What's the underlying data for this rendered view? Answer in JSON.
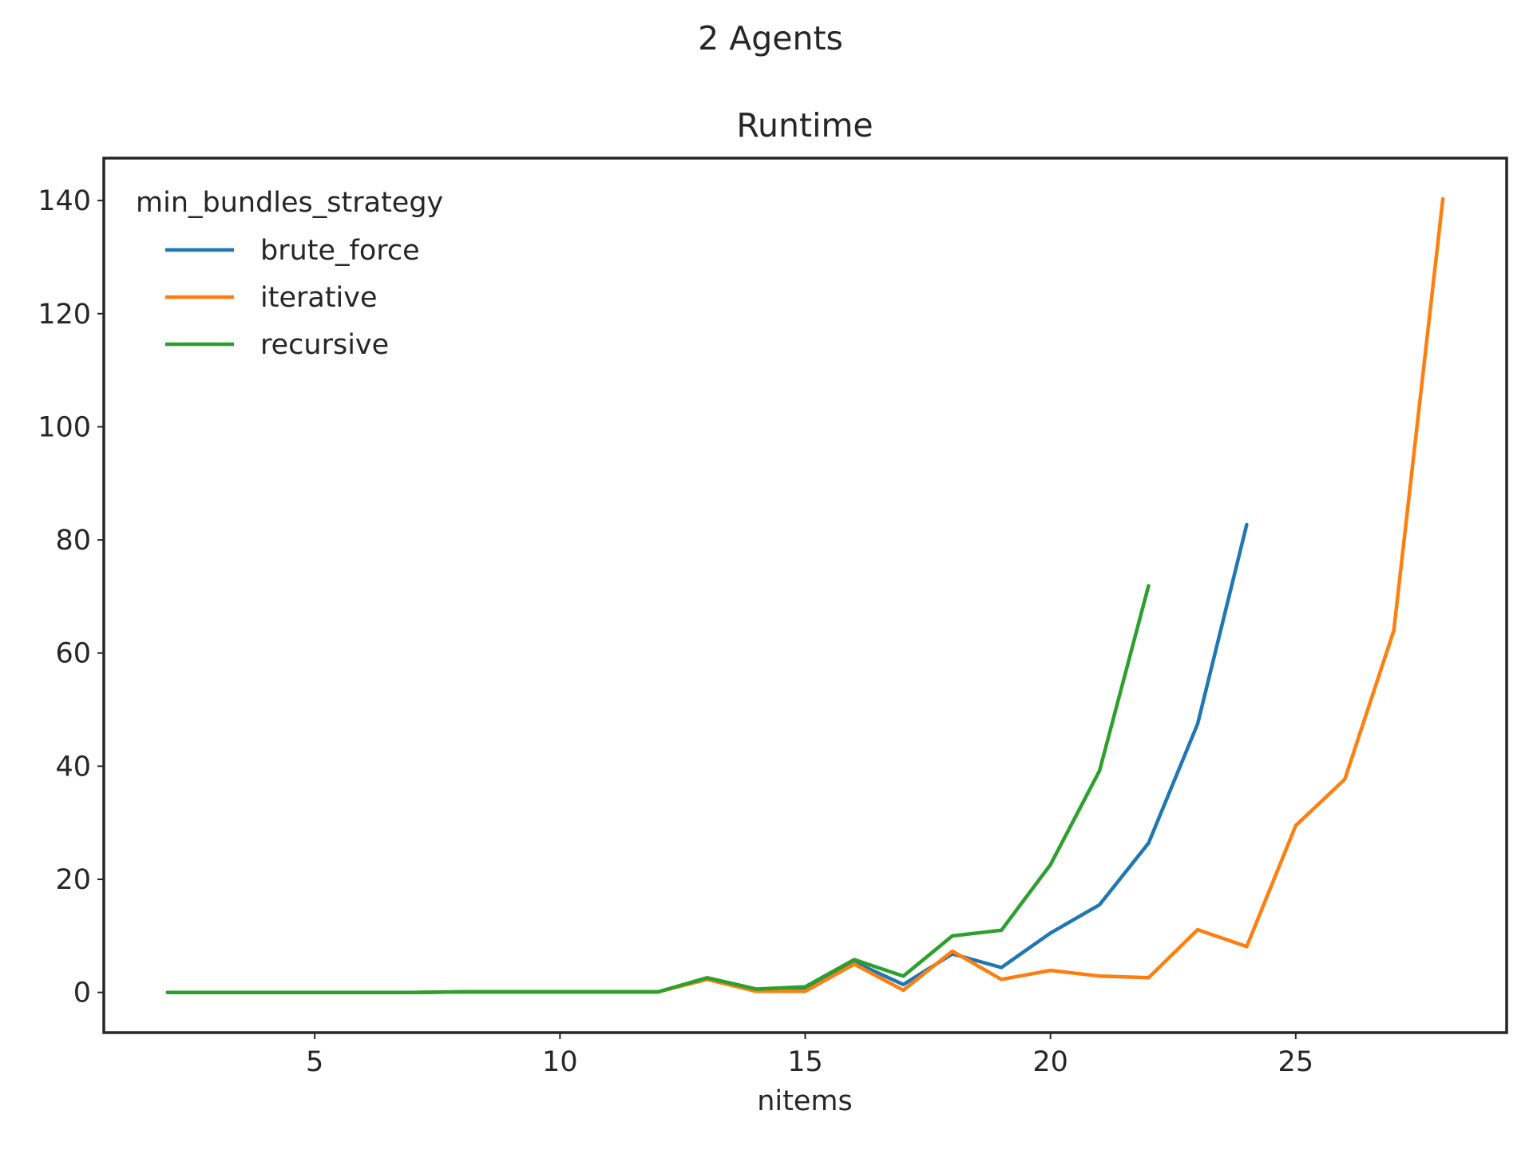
{
  "figure": {
    "suptitle": "2 Agents"
  },
  "chart_data": {
    "type": "line",
    "title": "Runtime",
    "xlabel": "nitems",
    "ylabel": "",
    "xlim": [
      0.7,
      29.3
    ],
    "ylim": [
      -7.1,
      147.5
    ],
    "xticks": [
      5,
      10,
      15,
      20,
      25
    ],
    "yticks": [
      0,
      20,
      40,
      60,
      80,
      100,
      120,
      140
    ],
    "grid": false,
    "legend": {
      "title": "min_bundles_strategy",
      "placement": "top-left"
    },
    "series": [
      {
        "name": "brute_force",
        "color": "#1f77b4",
        "x": [
          2,
          3,
          4,
          5,
          6,
          7,
          8,
          9,
          10,
          11,
          12,
          13,
          14,
          15,
          16,
          17,
          18,
          19,
          20,
          21,
          22,
          23,
          24
        ],
        "y": [
          0.0,
          0.0,
          0.0,
          0.0,
          0.0,
          0.0,
          0.1,
          0.1,
          0.1,
          0.1,
          0.1,
          2.4,
          0.5,
          0.7,
          5.4,
          1.4,
          6.8,
          4.4,
          10.5,
          15.5,
          26.4,
          47.5,
          82.7
        ]
      },
      {
        "name": "iterative",
        "color": "#ff7f0e",
        "x": [
          2,
          3,
          4,
          5,
          6,
          7,
          8,
          9,
          10,
          11,
          12,
          13,
          14,
          15,
          16,
          17,
          18,
          19,
          20,
          21,
          22,
          23,
          24,
          25,
          26,
          27,
          28
        ],
        "y": [
          0.0,
          0.0,
          0.0,
          0.0,
          0.0,
          0.0,
          0.1,
          0.1,
          0.1,
          0.1,
          0.1,
          2.3,
          0.2,
          0.2,
          5.0,
          0.4,
          7.3,
          2.3,
          3.9,
          2.9,
          2.6,
          11.1,
          8.1,
          29.5,
          37.7,
          64.0,
          140.3
        ]
      },
      {
        "name": "recursive",
        "color": "#2ca02c",
        "x": [
          2,
          3,
          4,
          5,
          6,
          7,
          8,
          9,
          10,
          11,
          12,
          13,
          14,
          15,
          16,
          17,
          18,
          19,
          20,
          21,
          22
        ],
        "y": [
          0.0,
          0.0,
          0.0,
          0.0,
          0.0,
          0.0,
          0.1,
          0.1,
          0.1,
          0.1,
          0.1,
          2.6,
          0.6,
          1.0,
          5.8,
          2.9,
          10.0,
          11.0,
          22.6,
          39.2,
          71.9
        ]
      }
    ]
  }
}
